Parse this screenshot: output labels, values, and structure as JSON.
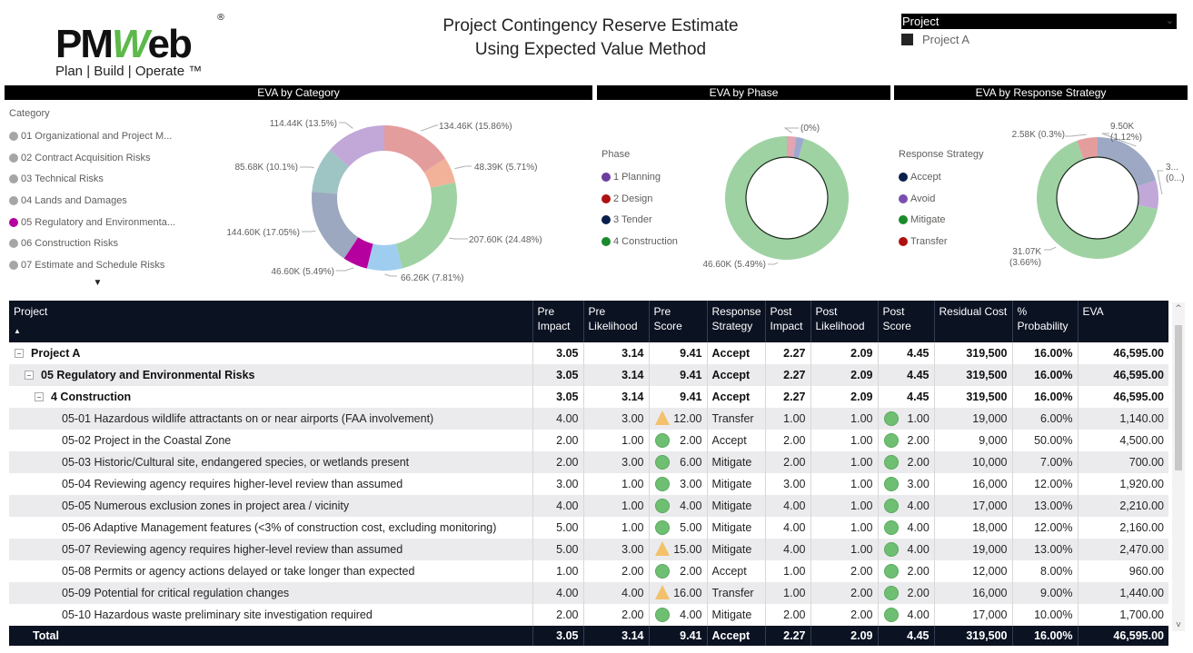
{
  "header": {
    "logo_brand_prefix": "PM",
    "logo_brand_w": "W",
    "logo_brand_suffix": "eb",
    "logo_registered": "®",
    "logo_tagline": "Plan | Build | Operate ™",
    "title_line1": "Project Contingency Reserve Estimate",
    "title_line2": "Using Expected Value Method"
  },
  "slicer": {
    "label": "Project",
    "chevron": "⌄",
    "items": [
      {
        "label": "Project A",
        "color": "#252423"
      }
    ]
  },
  "charts": {
    "category": {
      "title": "EVA by Category",
      "legend_title": "Category",
      "legend_more": "▼",
      "legend": [
        {
          "label": "01 Organizational and Project M...",
          "color": "#a6a6a6"
        },
        {
          "label": "02 Contract Acquisition Risks",
          "color": "#a6a6a6"
        },
        {
          "label": "03 Technical Risks",
          "color": "#a6a6a6"
        },
        {
          "label": "04 Lands and Damages",
          "color": "#a6a6a6"
        },
        {
          "label": "05 Regulatory and Environmenta...",
          "color": "#b5009f"
        },
        {
          "label": "06 Construction Risks",
          "color": "#a6a6a6"
        },
        {
          "label": "07 Estimate and Schedule Risks",
          "color": "#a6a6a6"
        }
      ]
    },
    "phase": {
      "title": "EVA by Phase",
      "legend_title": "Phase",
      "legend": [
        {
          "label": "1 Planning",
          "color": "#6b3fa0"
        },
        {
          "label": "2 Design",
          "color": "#b01010"
        },
        {
          "label": "3 Tender",
          "color": "#0b1f4d"
        },
        {
          "label": "4 Construction",
          "color": "#1a8a2a"
        }
      ]
    },
    "strategy": {
      "title": "EVA by Response Strategy",
      "legend_title": "Response Strategy",
      "legend": [
        {
          "label": "Accept",
          "color": "#0b1f4d"
        },
        {
          "label": "Avoid",
          "color": "#7a4fb0"
        },
        {
          "label": "Mitigate",
          "color": "#1a8a2a"
        },
        {
          "label": "Transfer",
          "color": "#b01010"
        }
      ]
    }
  },
  "chart_data": [
    {
      "type": "pie",
      "title": "EVA by Category",
      "donut": true,
      "legend_position": "left",
      "slices": [
        {
          "label": "134.46K (15.86%)",
          "value": 134.46,
          "percent": 15.86,
          "color": "#e49d9d"
        },
        {
          "label": "48.39K (5.71%)",
          "value": 48.39,
          "percent": 5.71,
          "color": "#f2b29a"
        },
        {
          "label": "207.60K (24.48%)",
          "value": 207.6,
          "percent": 24.48,
          "color": "#9fd2a3"
        },
        {
          "label": "66.26K (7.81%)",
          "value": 66.26,
          "percent": 7.81,
          "color": "#9fcdf0"
        },
        {
          "label": "46.60K (5.49%)",
          "value": 46.6,
          "percent": 5.49,
          "color": "#b5009f"
        },
        {
          "label": "144.60K (17.05%)",
          "value": 144.6,
          "percent": 17.05,
          "color": "#9ca8bf"
        },
        {
          "label": "85.68K (10.1%)",
          "value": 85.68,
          "percent": 10.1,
          "color": "#9fc4c4"
        },
        {
          "label": "114.44K (13.5%)",
          "value": 114.44,
          "percent": 13.5,
          "color": "#c1a8d8"
        }
      ]
    },
    {
      "type": "pie",
      "title": "EVA by Phase",
      "donut": true,
      "legend_position": "left",
      "slices": [
        {
          "label": "(0%)",
          "value": 1.2,
          "percent": 0,
          "color": "#e3a3b0"
        },
        {
          "label": "",
          "value": 1.0,
          "percent": 0,
          "color": "#9ca8d0"
        },
        {
          "label": "46.60K (5.49%)",
          "value": 46.6,
          "percent": 5.49,
          "color": "#9fd2a3"
        }
      ]
    },
    {
      "type": "pie",
      "title": "EVA by Response Strategy",
      "donut": true,
      "legend_position": "left",
      "slices": [
        {
          "label": "9.50K (1.12%)",
          "value": 9.5,
          "percent": 1.12,
          "color": "#9ca8c4"
        },
        {
          "label": "3... (0...)",
          "value": 3.5,
          "percent": 0.4,
          "color": "#c1a8d8"
        },
        {
          "label": "31.07K (3.66%)",
          "value": 31.07,
          "percent": 3.66,
          "color": "#9fd2a3"
        },
        {
          "label": "2.58K (0.3%)",
          "value": 2.58,
          "percent": 0.3,
          "color": "#e49d9d"
        }
      ]
    }
  ],
  "table": {
    "sort_indicator": "▲",
    "columns": [
      "Project",
      "Pre Impact",
      "Pre Likelihood",
      "Pre Score",
      "Response Strategy",
      "Post Impact",
      "Post Likelihood",
      "Post Score",
      "Residual Cost",
      "% Probability",
      "EVA"
    ],
    "group_rows": [
      {
        "label": "Project A",
        "level": 0,
        "pre_impact": "3.05",
        "pre_likelihood": "3.14",
        "pre_score": "9.41",
        "strategy": "Accept",
        "post_impact": "2.27",
        "post_likelihood": "2.09",
        "post_score": "4.45",
        "residual": "319,500",
        "probability": "16.00%",
        "eva": "46,595.00"
      },
      {
        "label": "05 Regulatory and Environmental Risks",
        "level": 1,
        "pre_impact": "3.05",
        "pre_likelihood": "3.14",
        "pre_score": "9.41",
        "strategy": "Accept",
        "post_impact": "2.27",
        "post_likelihood": "2.09",
        "post_score": "4.45",
        "residual": "319,500",
        "probability": "16.00%",
        "eva": "46,595.00"
      },
      {
        "label": "4 Construction",
        "level": 2,
        "pre_impact": "3.05",
        "pre_likelihood": "3.14",
        "pre_score": "9.41",
        "strategy": "Accept",
        "post_impact": "2.27",
        "post_likelihood": "2.09",
        "post_score": "4.45",
        "residual": "319,500",
        "probability": "16.00%",
        "eva": "46,595.00"
      }
    ],
    "rows": [
      {
        "label": "05-01 Hazardous wildlife attractants on or near airports (FAA involvement)",
        "pre_impact": "4.00",
        "pre_likelihood": "3.00",
        "pre_icon": "warning-triangle",
        "pre_score": "12.00",
        "strategy": "Transfer",
        "post_impact": "1.00",
        "post_likelihood": "1.00",
        "post_icon": "green-circle",
        "post_score": "1.00",
        "residual": "19,000",
        "probability": "6.00%",
        "eva": "1,140.00"
      },
      {
        "label": "05-02 Project in the Coastal Zone",
        "pre_impact": "2.00",
        "pre_likelihood": "1.00",
        "pre_icon": "green-circle",
        "pre_score": "2.00",
        "strategy": "Accept",
        "post_impact": "2.00",
        "post_likelihood": "1.00",
        "post_icon": "green-circle",
        "post_score": "2.00",
        "residual": "9,000",
        "probability": "50.00%",
        "eva": "4,500.00"
      },
      {
        "label": "05-03 Historic/Cultural site, endangered species, or wetlands present",
        "pre_impact": "2.00",
        "pre_likelihood": "3.00",
        "pre_icon": "green-circle",
        "pre_score": "6.00",
        "strategy": "Mitigate",
        "post_impact": "2.00",
        "post_likelihood": "1.00",
        "post_icon": "green-circle",
        "post_score": "2.00",
        "residual": "10,000",
        "probability": "7.00%",
        "eva": "700.00"
      },
      {
        "label": "05-04 Reviewing agency requires higher-level review than assumed",
        "pre_impact": "3.00",
        "pre_likelihood": "1.00",
        "pre_icon": "green-circle",
        "pre_score": "3.00",
        "strategy": "Mitigate",
        "post_impact": "3.00",
        "post_likelihood": "1.00",
        "post_icon": "green-circle",
        "post_score": "3.00",
        "residual": "16,000",
        "probability": "12.00%",
        "eva": "1,920.00"
      },
      {
        "label": "05-05 Numerous exclusion zones in project area / vicinity",
        "pre_impact": "4.00",
        "pre_likelihood": "1.00",
        "pre_icon": "green-circle",
        "pre_score": "4.00",
        "strategy": "Mitigate",
        "post_impact": "4.00",
        "post_likelihood": "1.00",
        "post_icon": "green-circle",
        "post_score": "4.00",
        "residual": "17,000",
        "probability": "13.00%",
        "eva": "2,210.00"
      },
      {
        "label": "05-06 Adaptive Management features (<3% of construction cost, excluding monitoring)",
        "pre_impact": "5.00",
        "pre_likelihood": "1.00",
        "pre_icon": "green-circle",
        "pre_score": "5.00",
        "strategy": "Mitigate",
        "post_impact": "4.00",
        "post_likelihood": "1.00",
        "post_icon": "green-circle",
        "post_score": "4.00",
        "residual": "18,000",
        "probability": "12.00%",
        "eva": "2,160.00"
      },
      {
        "label": "05-07 Reviewing agency requires higher-level review than assumed",
        "pre_impact": "5.00",
        "pre_likelihood": "3.00",
        "pre_icon": "warning-triangle",
        "pre_score": "15.00",
        "strategy": "Mitigate",
        "post_impact": "4.00",
        "post_likelihood": "1.00",
        "post_icon": "green-circle",
        "post_score": "4.00",
        "residual": "19,000",
        "probability": "13.00%",
        "eva": "2,470.00"
      },
      {
        "label": "05-08 Permits or agency actions delayed or take longer than expected",
        "pre_impact": "1.00",
        "pre_likelihood": "2.00",
        "pre_icon": "green-circle",
        "pre_score": "2.00",
        "strategy": "Accept",
        "post_impact": "1.00",
        "post_likelihood": "2.00",
        "post_icon": "green-circle",
        "post_score": "2.00",
        "residual": "12,000",
        "probability": "8.00%",
        "eva": "960.00"
      },
      {
        "label": "05-09 Potential for critical regulation changes",
        "pre_impact": "4.00",
        "pre_likelihood": "4.00",
        "pre_icon": "warning-triangle",
        "pre_score": "16.00",
        "strategy": "Transfer",
        "post_impact": "1.00",
        "post_likelihood": "2.00",
        "post_icon": "green-circle",
        "post_score": "2.00",
        "residual": "16,000",
        "probability": "9.00%",
        "eva": "1,440.00"
      },
      {
        "label": "05-10 Hazardous waste preliminary site investigation required",
        "pre_impact": "2.00",
        "pre_likelihood": "2.00",
        "pre_icon": "green-circle",
        "pre_score": "4.00",
        "strategy": "Mitigate",
        "post_impact": "2.00",
        "post_likelihood": "2.00",
        "post_icon": "green-circle",
        "post_score": "4.00",
        "residual": "17,000",
        "probability": "10.00%",
        "eva": "1,700.00"
      }
    ],
    "total": {
      "label": "Total",
      "pre_impact": "3.05",
      "pre_likelihood": "3.14",
      "pre_score": "9.41",
      "strategy": "Accept",
      "post_impact": "2.27",
      "post_likelihood": "2.09",
      "post_score": "4.45",
      "residual": "319,500",
      "probability": "16.00%",
      "eva": "46,595.00"
    }
  },
  "scrollbar": {
    "up": "^",
    "down": "v"
  }
}
